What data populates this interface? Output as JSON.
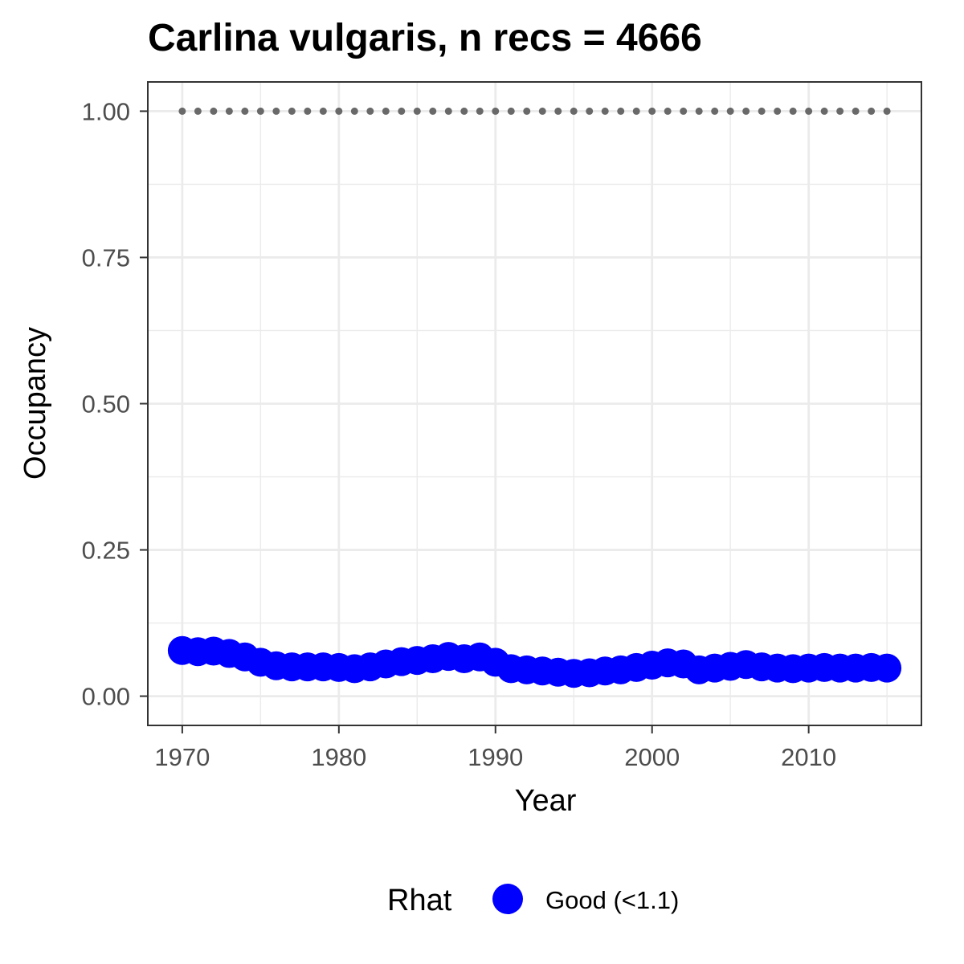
{
  "chart_data": {
    "type": "scatter",
    "title": "Carlina vulgaris, n recs = 4666",
    "xlabel": "Year",
    "ylabel": "Occupancy",
    "xlim": [
      1967.8,
      2017.2
    ],
    "ylim": [
      -0.05,
      1.05
    ],
    "x_ticks": [
      1970,
      1980,
      1990,
      2000,
      2010
    ],
    "x_tick_labels": [
      "1970",
      "1980",
      "1990",
      "2000",
      "2010"
    ],
    "y_ticks": [
      0,
      0.25,
      0.5,
      0.75,
      1
    ],
    "y_tick_labels": [
      "0.00",
      "0.25",
      "0.50",
      "0.75",
      "1.00"
    ],
    "grid": true,
    "legend": {
      "title": "Rhat",
      "position": "bottom",
      "entries": [
        {
          "label": "Good (<1.1)",
          "color": "#0000ff"
        }
      ]
    },
    "x": [
      1970,
      1971,
      1972,
      1973,
      1974,
      1975,
      1976,
      1977,
      1978,
      1979,
      1980,
      1981,
      1982,
      1983,
      1984,
      1985,
      1986,
      1987,
      1988,
      1989,
      1990,
      1991,
      1992,
      1993,
      1994,
      1995,
      1996,
      1997,
      1998,
      1999,
      2000,
      2001,
      2002,
      2003,
      2004,
      2005,
      2006,
      2007,
      2008,
      2009,
      2010,
      2011,
      2012,
      2013,
      2014,
      2015
    ],
    "series": [
      {
        "color": "#0000ff",
        "values": [
          0.078,
          0.076,
          0.077,
          0.073,
          0.067,
          0.058,
          0.052,
          0.05,
          0.05,
          0.05,
          0.049,
          0.047,
          0.05,
          0.055,
          0.059,
          0.061,
          0.064,
          0.068,
          0.064,
          0.067,
          0.058,
          0.047,
          0.045,
          0.043,
          0.041,
          0.039,
          0.04,
          0.043,
          0.045,
          0.049,
          0.053,
          0.057,
          0.055,
          0.045,
          0.048,
          0.051,
          0.054,
          0.05,
          0.048,
          0.047,
          0.048,
          0.049,
          0.048,
          0.048,
          0.049,
          0.048
        ]
      },
      {
        "color": "#696969",
        "values": [
          1,
          1,
          1,
          1,
          1,
          1,
          1,
          1,
          1,
          1,
          1,
          1,
          1,
          1,
          1,
          1,
          1,
          1,
          1,
          1,
          1,
          1,
          1,
          1,
          1,
          1,
          1,
          1,
          1,
          1,
          1,
          1,
          1,
          1,
          1,
          1,
          1,
          1,
          1,
          1,
          1,
          1,
          1,
          1,
          1,
          1
        ]
      }
    ],
    "panel_background": "#ffffff",
    "grid_color": "#ebebeb",
    "border_color": "#333333"
  }
}
